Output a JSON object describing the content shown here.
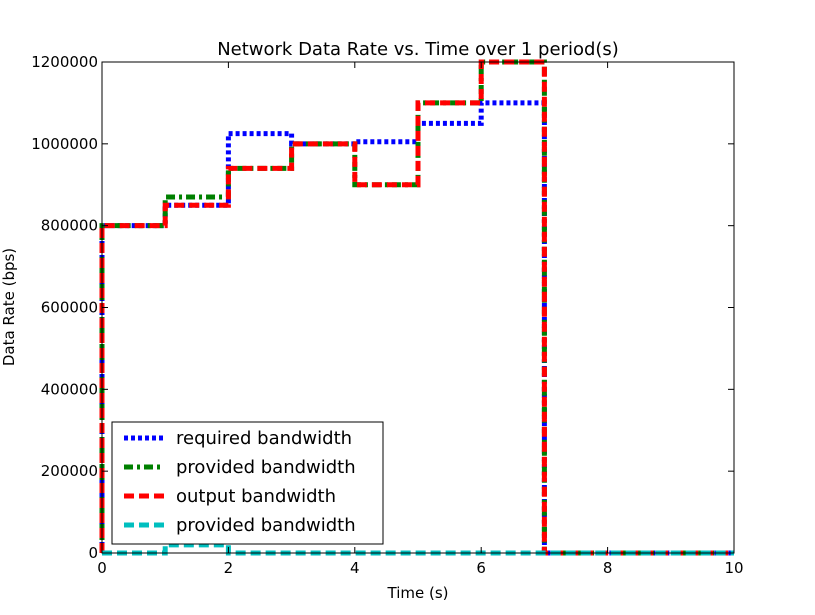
{
  "chart_data": {
    "type": "line",
    "title": "Network Data Rate vs. Time over 1 period(s)",
    "xlabel": "Time (s)",
    "ylabel": "Data Rate (bps)",
    "xlim": [
      0,
      10
    ],
    "ylim": [
      0,
      1200000
    ],
    "xticks": [
      "0",
      "2",
      "4",
      "6",
      "8",
      "10"
    ],
    "yticks": [
      "0",
      "200000",
      "400000",
      "600000",
      "800000",
      "1000000",
      "1200000"
    ],
    "grid": false,
    "legend_position": "lower-left",
    "series": [
      {
        "name": "required bandwidth",
        "color": "#0000ff",
        "style": "dotted",
        "x": [
          0,
          0,
          1,
          1,
          2,
          2,
          3,
          3,
          4,
          4,
          5,
          5,
          6,
          6,
          7,
          7,
          10
        ],
        "y": [
          0,
          800000,
          800000,
          850000,
          850000,
          1025000,
          1025000,
          1000000,
          1000000,
          1005000,
          1005000,
          1050000,
          1050000,
          1100000,
          1100000,
          0,
          0
        ]
      },
      {
        "name": "provided bandwidth",
        "color": "#008000",
        "style": "dashdot",
        "x": [
          0,
          0,
          1,
          1,
          2,
          2,
          3,
          3,
          4,
          4,
          5,
          5,
          6,
          6,
          7,
          7,
          10
        ],
        "y": [
          0,
          800000,
          800000,
          870000,
          870000,
          940000,
          940000,
          1000000,
          1000000,
          900000,
          900000,
          1100000,
          1100000,
          1200000,
          1200000,
          0,
          0
        ]
      },
      {
        "name": "output bandwidth",
        "color": "#ff0000",
        "style": "dashed",
        "x": [
          0,
          0,
          1,
          1,
          2,
          2,
          3,
          3,
          4,
          4,
          5,
          5,
          6,
          6,
          7,
          7,
          10
        ],
        "y": [
          0,
          800000,
          800000,
          850000,
          850000,
          940000,
          940000,
          1000000,
          1000000,
          900000,
          900000,
          1100000,
          1100000,
          1200000,
          1200000,
          0,
          0
        ]
      },
      {
        "name": "provided bandwidth",
        "color": "#00bfbf",
        "style": "dashed",
        "x": [
          0,
          1,
          1,
          2,
          2,
          10
        ],
        "y": [
          0,
          0,
          20000,
          20000,
          0,
          0
        ]
      }
    ]
  }
}
